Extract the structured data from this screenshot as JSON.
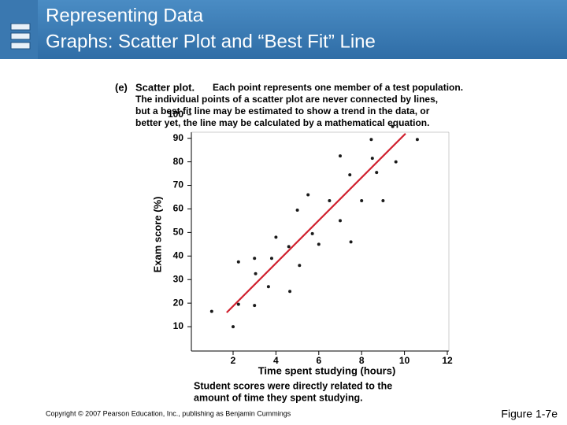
{
  "header": {
    "title": [
      "Representing Data",
      "Graphs: Scatter Plot and “Best Fit” Line"
    ]
  },
  "chart_data": {
    "type": "scatter",
    "label": "(e)",
    "title": "Scatter plot.",
    "description": [
      "Each point represents one member of a test population.",
      "The individual points of a scatter plot are never connected by lines,",
      "but a best fit line may be estimated to show a trend in the data, or",
      "better yet, the line may be calculated by a mathematical equation."
    ],
    "x_label": "Time spent studying (hours)",
    "y_label": "Exam score (%)",
    "x": [
      1.0,
      2.0,
      2.25,
      2.25,
      3.0,
      3.0,
      3.05,
      3.65,
      3.8,
      4.0,
      4.6,
      4.65,
      5.0,
      5.1,
      5.5,
      5.7,
      6.0,
      6.5,
      7.0,
      7.0,
      7.45,
      7.5,
      8.0,
      8.45,
      8.5,
      8.7,
      9.0,
      9.45,
      9.6,
      10.6
    ],
    "values": [
      16.5,
      10,
      37.5,
      19.5,
      39,
      19,
      32.5,
      27,
      39,
      48,
      44,
      25,
      59.5,
      36,
      66,
      49.5,
      45,
      63.5,
      82.5,
      55,
      74.5,
      46,
      63.5,
      89.5,
      81.5,
      75.5,
      63.5,
      95,
      80,
      89.5
    ],
    "color": "#1a1a1a",
    "fit_line": {
      "x": [
        1.7,
        10.05
      ],
      "y": [
        16,
        92
      ],
      "color": "#d0202e"
    },
    "xlim": [
      0,
      12
    ],
    "ylim": [
      0,
      100
    ],
    "xticks": [
      2,
      4,
      6,
      8,
      10,
      12
    ],
    "yticks": [
      10,
      20,
      30,
      40,
      50,
      60,
      70,
      80,
      90,
      100
    ],
    "grid": false,
    "caption": [
      "Student scores were directly related to the",
      "amount of time they spent studying."
    ]
  },
  "footer": {
    "copyright": "Copyright © 2007 Pearson Education, Inc., publishing as Benjamin Cummings",
    "figure": "Figure 1-7e"
  }
}
